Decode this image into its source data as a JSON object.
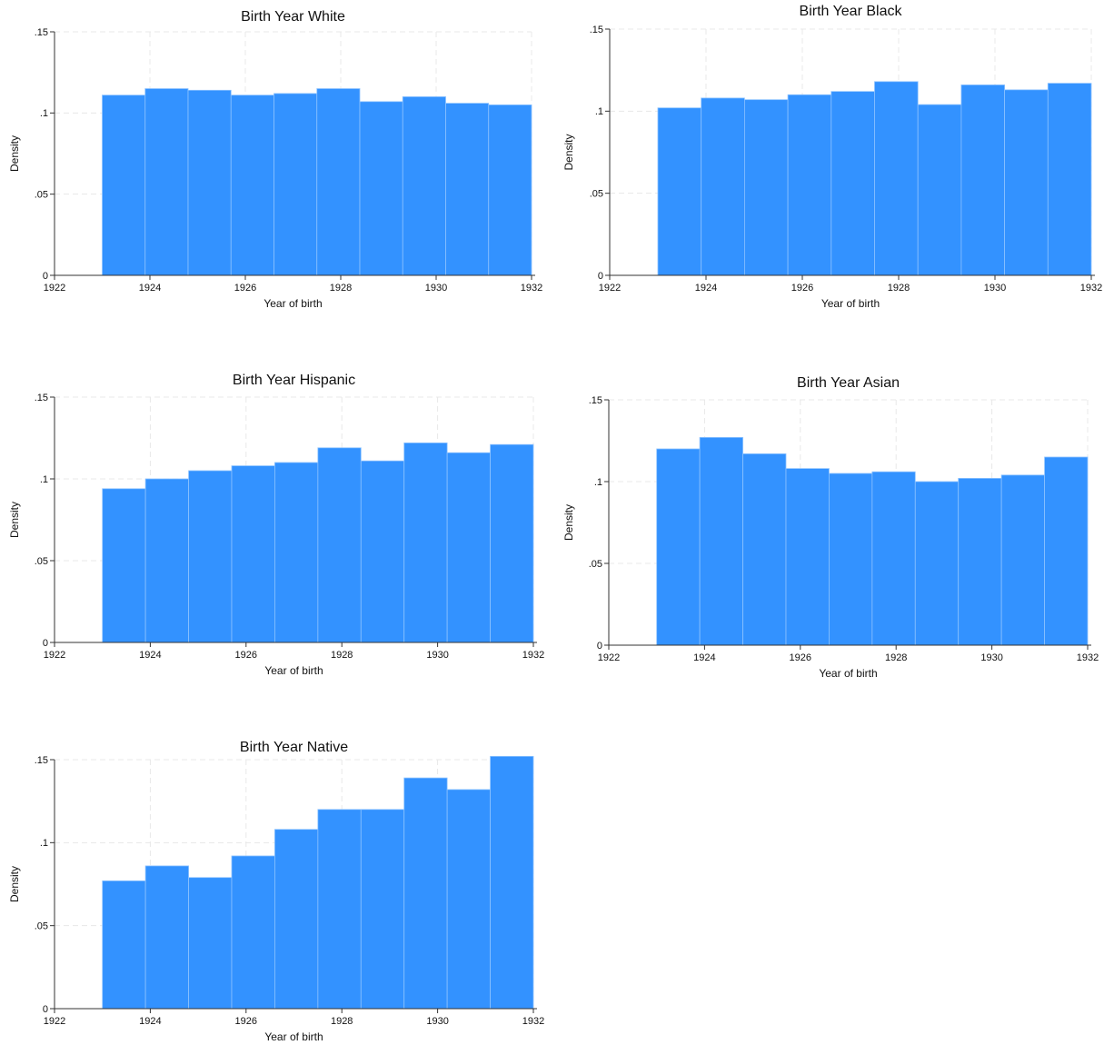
{
  "chart_data": [
    {
      "type": "bar",
      "title": "Birth Year White",
      "xlabel": "Year of birth",
      "ylabel": "Density",
      "xlim": [
        1922,
        1932
      ],
      "ylim": [
        0,
        0.15
      ],
      "xticks": [
        1922,
        1924,
        1926,
        1928,
        1930,
        1932
      ],
      "yticks": [
        0,
        0.05,
        0.1,
        0.15
      ],
      "ytick_labels": [
        "0",
        ".05",
        ".1",
        ".15"
      ],
      "grid": true,
      "bin_start": 1923,
      "bin_end": 1932,
      "values": [
        0.111,
        0.115,
        0.114,
        0.111,
        0.112,
        0.115,
        0.107,
        0.11,
        0.106,
        0.105
      ],
      "color": "#3392ff"
    },
    {
      "type": "bar",
      "title": "Birth Year Black",
      "xlabel": "Year of birth",
      "ylabel": "Density",
      "xlim": [
        1922,
        1932
      ],
      "ylim": [
        0,
        0.15
      ],
      "xticks": [
        1922,
        1924,
        1926,
        1928,
        1930,
        1932
      ],
      "yticks": [
        0,
        0.05,
        0.1,
        0.15
      ],
      "ytick_labels": [
        "0",
        ".05",
        ".1",
        ".15"
      ],
      "grid": true,
      "bin_start": 1923,
      "bin_end": 1932,
      "values": [
        0.102,
        0.108,
        0.107,
        0.11,
        0.112,
        0.118,
        0.104,
        0.116,
        0.113,
        0.117
      ],
      "color": "#3392ff"
    },
    {
      "type": "bar",
      "title": "Birth Year Hispanic",
      "xlabel": "Year of birth",
      "ylabel": "Density",
      "xlim": [
        1922,
        1932
      ],
      "ylim": [
        0,
        0.15
      ],
      "xticks": [
        1922,
        1924,
        1926,
        1928,
        1930,
        1932
      ],
      "yticks": [
        0,
        0.05,
        0.1,
        0.15
      ],
      "ytick_labels": [
        "0",
        ".05",
        ".1",
        ".15"
      ],
      "grid": true,
      "bin_start": 1923,
      "bin_end": 1932,
      "values": [
        0.094,
        0.1,
        0.105,
        0.108,
        0.11,
        0.119,
        0.111,
        0.122,
        0.116,
        0.121
      ],
      "color": "#3392ff"
    },
    {
      "type": "bar",
      "title": "Birth Year Asian",
      "xlabel": "Year of birth",
      "ylabel": "Density",
      "xlim": [
        1922,
        1932
      ],
      "ylim": [
        0,
        0.15
      ],
      "xticks": [
        1922,
        1924,
        1926,
        1928,
        1930,
        1932
      ],
      "yticks": [
        0,
        0.05,
        0.1,
        0.15
      ],
      "ytick_labels": [
        "0",
        ".05",
        ".1",
        ".15"
      ],
      "grid": true,
      "bin_start": 1923,
      "bin_end": 1932,
      "values": [
        0.12,
        0.127,
        0.117,
        0.108,
        0.105,
        0.106,
        0.1,
        0.102,
        0.104,
        0.115
      ],
      "color": "#3392ff"
    },
    {
      "type": "bar",
      "title": "Birth Year Native",
      "xlabel": "Year of birth",
      "ylabel": "Density",
      "xlim": [
        1922,
        1932
      ],
      "ylim": [
        0,
        0.15
      ],
      "xticks": [
        1922,
        1924,
        1926,
        1928,
        1930,
        1932
      ],
      "yticks": [
        0,
        0.05,
        0.1,
        0.15
      ],
      "ytick_labels": [
        "0",
        ".05",
        ".1",
        ".15"
      ],
      "grid": true,
      "bin_start": 1923,
      "bin_end": 1932,
      "values": [
        0.077,
        0.086,
        0.079,
        0.092,
        0.108,
        0.12,
        0.12,
        0.139,
        0.132,
        0.152
      ],
      "color": "#3392ff"
    }
  ]
}
